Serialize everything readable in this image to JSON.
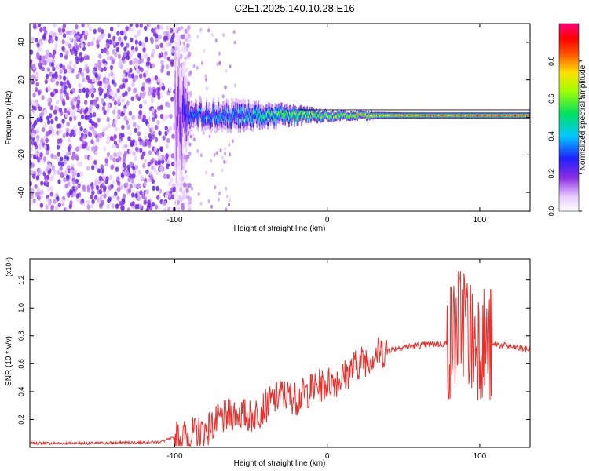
{
  "title": "C2E1.2025.140.10.28.E16",
  "chart_data": [
    {
      "type": "heatmap",
      "xlabel": "Height of straight line (km)",
      "ylabel": "Frequency (Hz)",
      "xlim": [
        -195,
        133
      ],
      "ylim": [
        -50,
        50
      ],
      "xticks": [
        -100,
        0,
        100
      ],
      "yticks": [
        -40,
        -20,
        0,
        20,
        40
      ],
      "colorbar": {
        "label": "Normalized spectral amplitude",
        "range": [
          0,
          1
        ],
        "ticks": [
          "0.0",
          "0.2",
          "0.4",
          "0.6",
          "0.8"
        ],
        "colormap": "rainbow (white-violet-blue-cyan-green-yellow-red-magenta)"
      },
      "description_points": [
        {
          "x": -195,
          "amplitude": 0.15,
          "spread_hz": 50
        },
        {
          "x": -100,
          "amplitude": 0.15,
          "spread_hz": 50
        },
        {
          "x": -90,
          "amplitude": 0.35,
          "spread_hz": 8
        },
        {
          "x": -60,
          "amplitude": 0.4,
          "spread_hz": 8
        },
        {
          "x": -30,
          "amplitude": 0.6,
          "spread_hz": 6
        },
        {
          "x": 0,
          "amplitude": 0.7,
          "spread_hz": 3
        },
        {
          "x": 50,
          "amplitude": 0.85,
          "spread_hz": 2
        },
        {
          "x": 100,
          "amplitude": 0.9,
          "spread_hz": 2
        },
        {
          "x": 133,
          "amplitude": 0.95,
          "spread_hz": 2
        }
      ]
    },
    {
      "type": "line",
      "xlabel": "Height of straight line (km)",
      "ylabel": "SNR (10 * v/v)",
      "y_multiplier": "(x10⁴)",
      "xlim": [
        -195,
        133
      ],
      "ylim": [
        0,
        1.35
      ],
      "xticks": [
        -100,
        0,
        100
      ],
      "yticks": [
        "0.2",
        "0.4",
        "0.6",
        "0.8",
        "1.0",
        "1.2"
      ],
      "series": [
        {
          "color": "#e8302c",
          "x": [
            -195,
            -150,
            -110,
            -100,
            -90,
            -80,
            -70,
            -60,
            -50,
            -40,
            -30,
            -20,
            -10,
            0,
            10,
            20,
            30,
            40,
            50,
            60,
            70,
            75,
            80,
            85,
            90,
            95,
            100,
            105,
            110,
            120,
            133
          ],
          "y": [
            0.03,
            0.03,
            0.04,
            0.07,
            0.09,
            0.12,
            0.2,
            0.25,
            0.22,
            0.3,
            0.38,
            0.35,
            0.42,
            0.46,
            0.5,
            0.6,
            0.66,
            0.7,
            0.72,
            0.73,
            0.74,
            0.74,
            0.75,
            0.85,
            0.95,
            0.75,
            0.8,
            0.7,
            0.74,
            0.72,
            0.7
          ]
        }
      ]
    }
  ]
}
